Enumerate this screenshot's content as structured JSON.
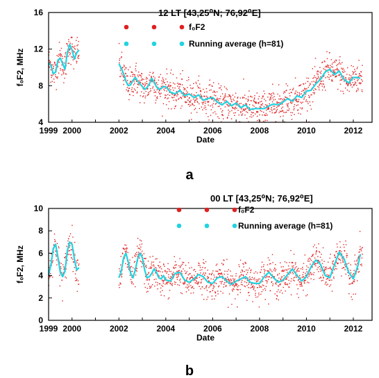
{
  "chart_data": [
    {
      "panel": "a",
      "type": "scatter",
      "title": "12 LT [43,25⁰N; 76,92⁰E]",
      "xlabel": "Date",
      "ylabel": "f₀F2, MHz",
      "xlim": [
        1999,
        2012.8
      ],
      "ylim": [
        4,
        16
      ],
      "xticks": [
        1999,
        2000,
        2002,
        2004,
        2006,
        2008,
        2010,
        2012
      ],
      "yticks": [
        4,
        8,
        12,
        16
      ],
      "grid": false,
      "legend_position": "top-right",
      "series": [
        {
          "name": "f₀F2",
          "kind": "points",
          "color": "#e02020",
          "note": "daily values scattered about the running average",
          "segments": [
            [
              1999.0,
              2000.35
            ],
            [
              2001.9,
              2012.4
            ]
          ]
        },
        {
          "name": "Running average (h=81)",
          "kind": "line",
          "color": "#22d3e0",
          "x": [
            1999.0,
            1999.1,
            1999.2,
            1999.3,
            1999.4,
            1999.5,
            1999.6,
            1999.7,
            1999.8,
            1999.9,
            2000.0,
            2000.1,
            2000.2,
            2000.3,
            2002.0,
            2002.1,
            2002.2,
            2002.3,
            2002.4,
            2002.5,
            2002.6,
            2002.7,
            2002.8,
            2002.9,
            2003.0,
            2003.1,
            2003.2,
            2003.3,
            2003.4,
            2003.5,
            2003.6,
            2003.7,
            2003.8,
            2003.9,
            2004.0,
            2004.2,
            2004.4,
            2004.6,
            2004.8,
            2005.0,
            2005.2,
            2005.4,
            2005.6,
            2005.8,
            2006.0,
            2006.2,
            2006.4,
            2006.6,
            2006.8,
            2007.0,
            2007.2,
            2007.4,
            2007.6,
            2007.8,
            2008.0,
            2008.2,
            2008.4,
            2008.6,
            2008.8,
            2009.0,
            2009.2,
            2009.4,
            2009.6,
            2009.8,
            2010.0,
            2010.2,
            2010.4,
            2010.6,
            2010.8,
            2011.0,
            2011.2,
            2011.4,
            2011.6,
            2011.8,
            2012.0,
            2012.2,
            2012.3
          ],
          "y": [
            10.5,
            10.2,
            9.3,
            9.5,
            10.8,
            11.0,
            10.4,
            9.8,
            11.6,
            12.5,
            11.9,
            10.9,
            11.6,
            11.9,
            10.4,
            9.9,
            9.3,
            8.5,
            8.0,
            8.1,
            8.6,
            8.9,
            8.5,
            8.2,
            7.9,
            7.6,
            7.8,
            8.2,
            8.8,
            8.4,
            7.9,
            7.6,
            7.7,
            7.9,
            7.9,
            7.3,
            7.1,
            7.5,
            6.9,
            7.1,
            6.7,
            7.0,
            6.4,
            6.6,
            6.7,
            6.2,
            5.9,
            6.3,
            5.8,
            6.1,
            5.6,
            5.9,
            5.4,
            5.5,
            5.5,
            5.5,
            5.8,
            6.0,
            5.9,
            6.2,
            6.6,
            6.3,
            6.9,
            6.7,
            7.4,
            7.5,
            8.2,
            8.7,
            9.5,
            9.8,
            9.2,
            9.6,
            8.7,
            8.3,
            8.9,
            8.9,
            8.8
          ]
        }
      ]
    },
    {
      "panel": "b",
      "type": "scatter",
      "title": "00 LT [43,25⁰N; 76,92⁰E]",
      "xlabel": "Date",
      "ylabel": "f₀F2, MHz",
      "xlim": [
        1999,
        2012.8
      ],
      "ylim": [
        0,
        10
      ],
      "xticks": [
        1999,
        2000,
        2002,
        2004,
        2006,
        2008,
        2010,
        2012
      ],
      "yticks": [
        0,
        2,
        4,
        6,
        8,
        10
      ],
      "grid": false,
      "legend_position": "top-right",
      "series": [
        {
          "name": "f₀F2",
          "kind": "points",
          "color": "#e02020",
          "note": "daily values scattered about the running average",
          "segments": [
            [
              1999.0,
              2000.35
            ],
            [
              2001.9,
              2012.4
            ]
          ]
        },
        {
          "name": "Running average (h=81)",
          "kind": "line",
          "color": "#22d3e0",
          "x": [
            1999.0,
            1999.1,
            1999.2,
            1999.3,
            1999.4,
            1999.5,
            1999.6,
            1999.7,
            1999.8,
            1999.9,
            2000.0,
            2000.1,
            2000.2,
            2000.3,
            2002.0,
            2002.1,
            2002.2,
            2002.3,
            2002.4,
            2002.5,
            2002.6,
            2002.7,
            2002.8,
            2002.9,
            2003.0,
            2003.1,
            2003.2,
            2003.3,
            2003.4,
            2003.5,
            2003.6,
            2003.7,
            2003.8,
            2003.9,
            2004.0,
            2004.2,
            2004.4,
            2004.6,
            2004.8,
            2005.0,
            2005.2,
            2005.4,
            2005.6,
            2005.8,
            2006.0,
            2006.2,
            2006.4,
            2006.6,
            2006.8,
            2007.0,
            2007.2,
            2007.4,
            2007.6,
            2007.8,
            2008.0,
            2008.2,
            2008.4,
            2008.6,
            2008.8,
            2009.0,
            2009.2,
            2009.4,
            2009.6,
            2009.8,
            2010.0,
            2010.2,
            2010.4,
            2010.6,
            2010.8,
            2011.0,
            2011.2,
            2011.4,
            2011.6,
            2011.8,
            2012.0,
            2012.2,
            2012.3
          ],
          "y": [
            4.0,
            5.0,
            6.4,
            6.8,
            5.6,
            4.3,
            3.9,
            4.4,
            6.2,
            7.0,
            6.8,
            5.5,
            4.5,
            4.7,
            3.8,
            4.4,
            5.6,
            6.0,
            5.2,
            4.2,
            3.8,
            4.5,
            5.5,
            6.0,
            5.6,
            4.5,
            3.8,
            3.9,
            4.2,
            4.6,
            4.3,
            3.8,
            3.7,
            4.0,
            3.6,
            3.5,
            4.2,
            4.3,
            3.6,
            3.4,
            3.7,
            4.1,
            3.9,
            3.4,
            3.3,
            3.8,
            3.9,
            3.5,
            3.2,
            3.5,
            3.7,
            3.9,
            3.4,
            3.3,
            3.3,
            3.9,
            4.3,
            3.8,
            3.4,
            3.6,
            4.1,
            4.6,
            4.0,
            3.5,
            3.9,
            4.8,
            5.4,
            5.0,
            4.0,
            3.8,
            5.0,
            6.1,
            5.5,
            4.3,
            3.7,
            4.9,
            5.9
          ]
        }
      ]
    }
  ],
  "panel_labels": [
    "a",
    "b"
  ]
}
